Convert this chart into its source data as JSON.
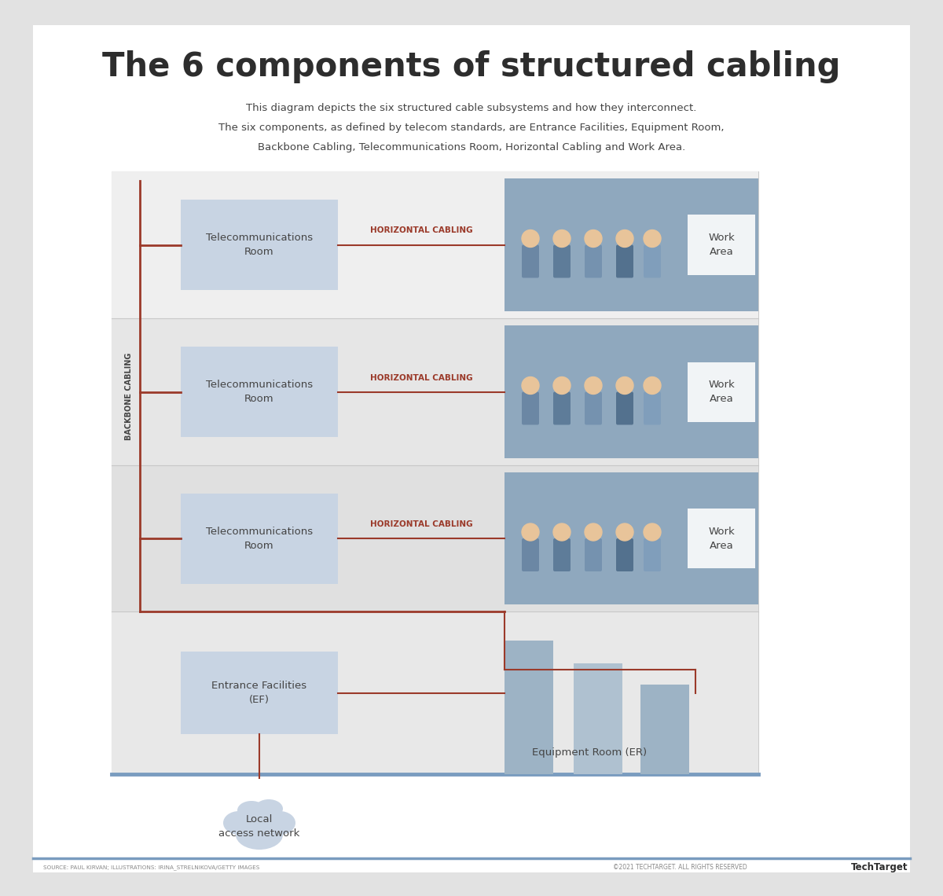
{
  "title": "The 6 components of structured cabling",
  "subtitle_line1": "This diagram depicts the six structured cable subsystems and how they interconnect.",
  "subtitle_line2": "The six components, as defined by telecom standards, are Entrance Facilities, Equipment Room,",
  "subtitle_line3": "Backbone Cabling, Telecommunications Room, Horizontal Cabling and Work Area.",
  "bg_color": "#e2e2e2",
  "card_bg": "#ffffff",
  "box_light_blue": "#c8d4e3",
  "row_bg_1": "#efefef",
  "row_bg_2": "#e6e6e6",
  "row_bg_3": "#e0e0e0",
  "row_bg_bottom": "#e8e8e8",
  "diagram_bg": "#f2f2f2",
  "line_color": "#9b3a2a",
  "title_color": "#2d2d2d",
  "text_color": "#444444",
  "horiz_label_color": "#9b3a2a",
  "footer_line": "#7a9cbf",
  "wa_img_bg_1": "#8fa8be",
  "wa_img_bg_2": "#8fa8be",
  "wa_img_bg_3": "#8fa8be",
  "er_rack_1": "#9db3c5",
  "er_rack_2": "#afc1d0",
  "er_rack_3": "#9db3c5",
  "source_text": "SOURCE: PAUL KIRVAN; ILLUSTRATIONS: IRINA_STRELNIKOVA/GETTY IMAGES",
  "copyright_text": "©2021 TECHTARGET. ALL RIGHTS RESERVED",
  "footer_brand": "TechTarget",
  "separator_color": "#c8c8c8",
  "diagram_border": "#cccccc"
}
